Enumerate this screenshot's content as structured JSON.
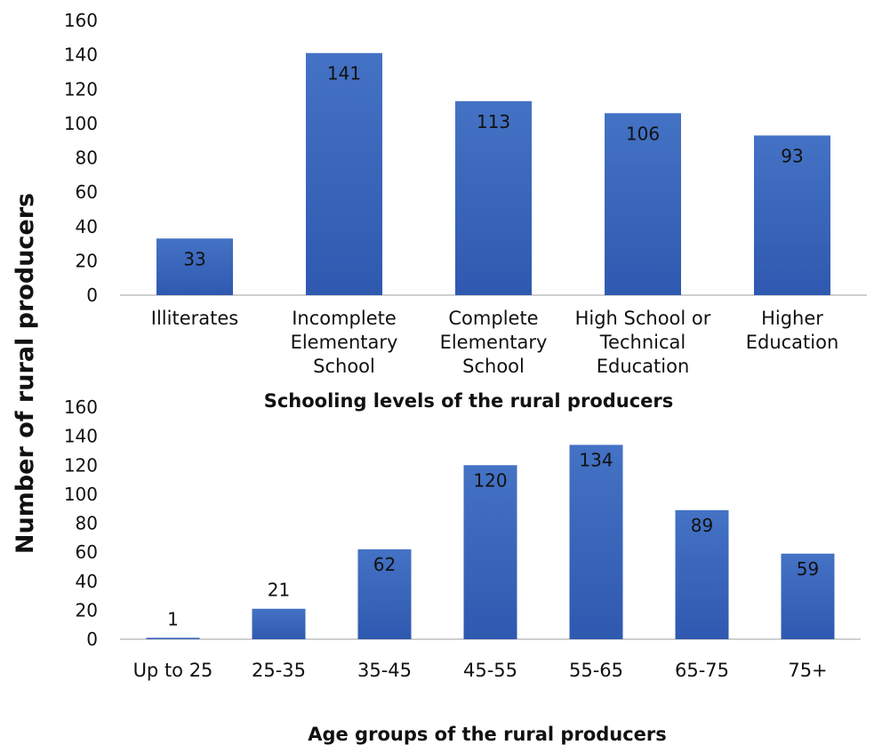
{
  "shared_ylabel": "Number of rural producers",
  "colors": {
    "bar_top": "#4472c4",
    "bar_bottom": "#2f59b0",
    "axis": "#bfbfbf"
  },
  "chart_data": [
    {
      "type": "bar",
      "categories": [
        "Illiterates",
        "Incomplete\nElementary\nSchool",
        "Complete\nElementary\nSchool",
        "High School or\nTechnical\nEducation",
        "Higher\nEducation"
      ],
      "values": [
        33,
        141,
        113,
        106,
        93
      ],
      "data_labels": [
        "33",
        "141",
        "113",
        "106",
        "93"
      ],
      "xlabel": "Schooling levels of the rural producers",
      "ylabel": "Number of rural producers",
      "ylim": [
        0,
        160
      ],
      "yticks": [
        "0",
        "20",
        "40",
        "60",
        "80",
        "100",
        "120",
        "140",
        "160"
      ],
      "grid": false,
      "legend": "none"
    },
    {
      "type": "bar",
      "categories": [
        "Up to 25",
        "25-35",
        "35-45",
        "45-55",
        "55-65",
        "65-75",
        "75+"
      ],
      "values": [
        1,
        21,
        62,
        120,
        134,
        89,
        59
      ],
      "data_labels": [
        "1",
        "21",
        "62",
        "120",
        "134",
        "89",
        "59"
      ],
      "xlabel": "Age groups of the rural producers",
      "ylabel": "Number of rural producers",
      "ylim": [
        0,
        160
      ],
      "yticks": [
        "0",
        "20",
        "40",
        "60",
        "80",
        "100",
        "120",
        "140",
        "160"
      ],
      "grid": false,
      "legend": "none"
    }
  ]
}
